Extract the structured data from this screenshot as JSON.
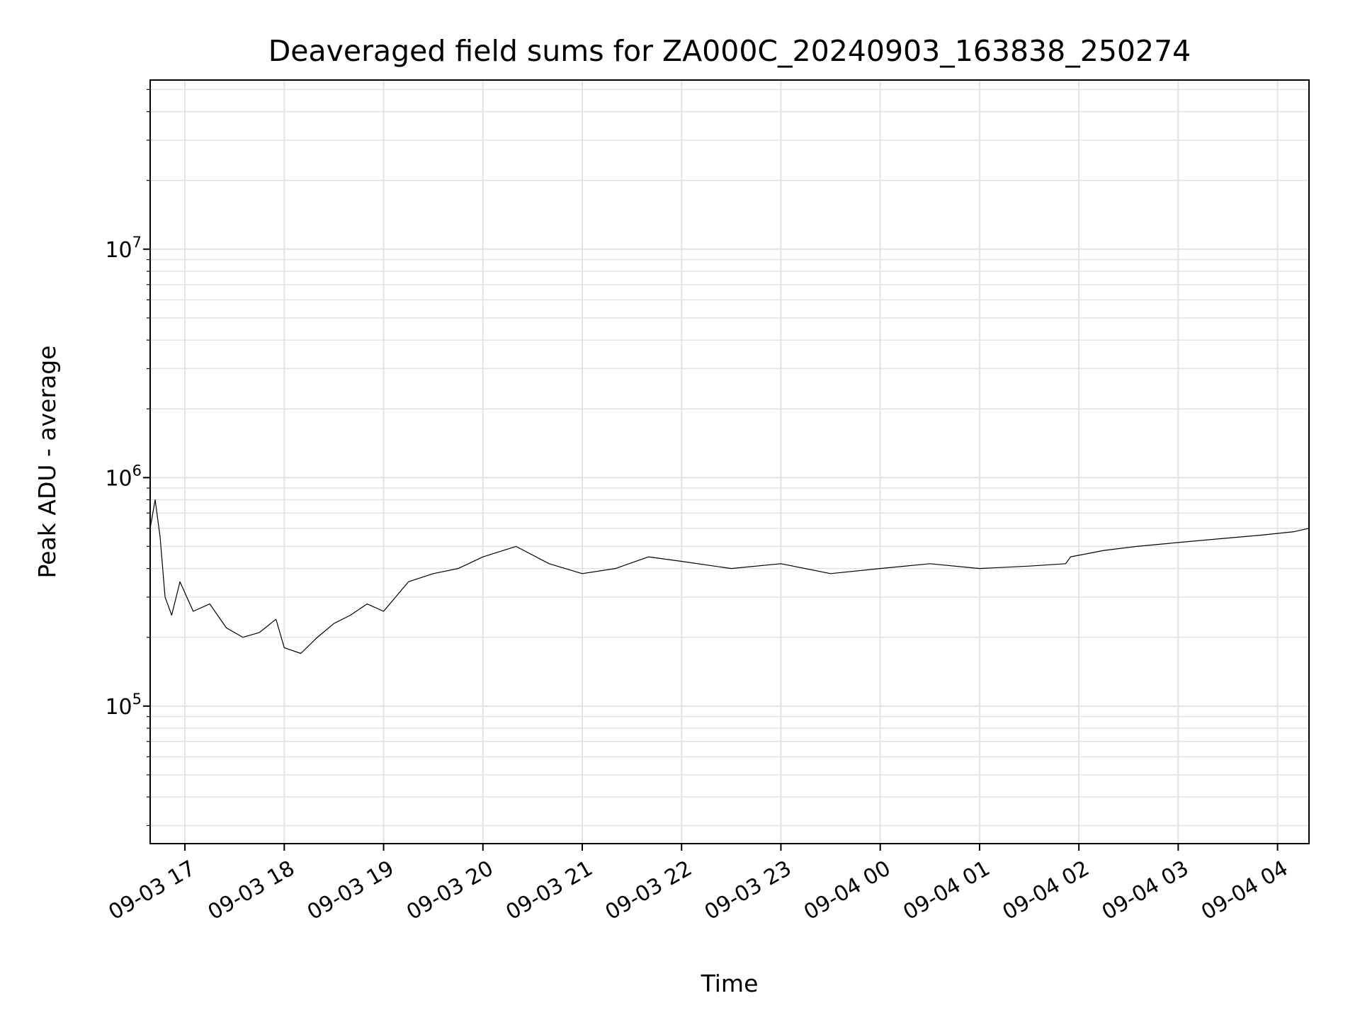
{
  "chart_data": {
    "type": "line",
    "title": "Deaveraged field sums for ZA000C_20240903_163838_250274",
    "xlabel": "Time",
    "ylabel": "Peak ADU - average",
    "yscale": "log",
    "ylim": [
      25000,
      55000000
    ],
    "xlim": [
      "2024-09-03 16:39",
      "2024-09-04 04:19"
    ],
    "grid": true,
    "line_color": "#000000",
    "grid_color": "#e3e3e3",
    "x_ticks": [
      {
        "t": "2024-09-03 17:00",
        "label": "09-03 17"
      },
      {
        "t": "2024-09-03 18:00",
        "label": "09-03 18"
      },
      {
        "t": "2024-09-03 19:00",
        "label": "09-03 19"
      },
      {
        "t": "2024-09-03 20:00",
        "label": "09-03 20"
      },
      {
        "t": "2024-09-03 21:00",
        "label": "09-03 21"
      },
      {
        "t": "2024-09-03 22:00",
        "label": "09-03 22"
      },
      {
        "t": "2024-09-03 23:00",
        "label": "09-03 23"
      },
      {
        "t": "2024-09-04 00:00",
        "label": "09-04 00"
      },
      {
        "t": "2024-09-04 01:00",
        "label": "09-04 01"
      },
      {
        "t": "2024-09-04 02:00",
        "label": "09-04 02"
      },
      {
        "t": "2024-09-04 03:00",
        "label": "09-04 03"
      },
      {
        "t": "2024-09-04 04:00",
        "label": "09-04 04"
      }
    ],
    "y_ticks": [
      {
        "value": 100000,
        "base": "10",
        "exp": "5"
      },
      {
        "value": 1000000,
        "base": "10",
        "exp": "6"
      },
      {
        "value": 10000000,
        "base": "10",
        "exp": "7"
      }
    ],
    "series": [
      {
        "points": [
          [
            "2024-09-03 16:39",
            600000
          ],
          [
            "2024-09-03 16:42",
            800000
          ],
          [
            "2024-09-03 16:45",
            550000
          ],
          [
            "2024-09-03 16:48",
            300000
          ],
          [
            "2024-09-03 16:52",
            250000
          ],
          [
            "2024-09-03 16:57",
            350000
          ],
          [
            "2024-09-03 17:05",
            260000
          ],
          [
            "2024-09-03 17:15",
            280000
          ],
          [
            "2024-09-03 17:25",
            220000
          ],
          [
            "2024-09-03 17:35",
            200000
          ],
          [
            "2024-09-03 17:45",
            210000
          ],
          [
            "2024-09-03 17:55",
            240000
          ],
          [
            "2024-09-03 18:00",
            180000
          ],
          [
            "2024-09-03 18:10",
            170000
          ],
          [
            "2024-09-03 18:20",
            200000
          ],
          [
            "2024-09-03 18:30",
            230000
          ],
          [
            "2024-09-03 18:40",
            250000
          ],
          [
            "2024-09-03 18:50",
            280000
          ],
          [
            "2024-09-03 19:00",
            260000
          ],
          [
            "2024-09-03 19:15",
            350000
          ],
          [
            "2024-09-03 19:30",
            380000
          ],
          [
            "2024-09-03 19:45",
            400000
          ],
          [
            "2024-09-03 20:00",
            450000
          ],
          [
            "2024-09-03 20:20",
            500000
          ],
          [
            "2024-09-03 20:40",
            420000
          ],
          [
            "2024-09-03 21:00",
            380000
          ],
          [
            "2024-09-03 21:20",
            400000
          ],
          [
            "2024-09-03 21:40",
            450000
          ],
          [
            "2024-09-03 22:00",
            430000
          ],
          [
            "2024-09-03 22:30",
            400000
          ],
          [
            "2024-09-03 23:00",
            420000
          ],
          [
            "2024-09-03 23:30",
            380000
          ],
          [
            "2024-09-04 00:00",
            400000
          ],
          [
            "2024-09-04 00:30",
            420000
          ],
          [
            "2024-09-04 01:00",
            400000
          ],
          [
            "2024-09-04 01:30",
            410000
          ],
          [
            "2024-09-04 01:52",
            420000
          ],
          [
            "2024-09-04 01:55",
            450000
          ],
          [
            "2024-09-04 02:15",
            480000
          ],
          [
            "2024-09-04 02:35",
            500000
          ],
          [
            "2024-09-04 03:00",
            520000
          ],
          [
            "2024-09-04 03:25",
            540000
          ],
          [
            "2024-09-04 03:50",
            560000
          ],
          [
            "2024-09-04 04:10",
            580000
          ],
          [
            "2024-09-04 04:19",
            600000
          ]
        ]
      }
    ]
  }
}
